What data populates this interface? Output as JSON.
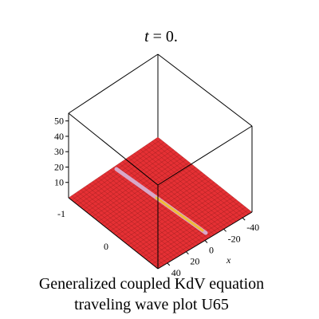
{
  "chart_data": {
    "type": "surface",
    "title": "t = 0.",
    "title_var": "t",
    "title_rest": " = 0.",
    "caption": [
      "Generalized coupled KdV equation",
      "traveling wave plot U65"
    ],
    "xlabel": "x",
    "ylabel": "",
    "zlabel": "",
    "x_ticks": [
      "-40",
      "-20",
      "0",
      "20",
      "40"
    ],
    "y_ticks": [
      "-1",
      "0"
    ],
    "z_ticks": [
      "10",
      "20",
      "30",
      "40",
      "50"
    ],
    "xlim": [
      -50,
      50
    ],
    "ylim": [
      -1,
      1
    ],
    "zlim": [
      0,
      55
    ],
    "grid": "none",
    "surface_color": "#e53034",
    "mesh_color": "#8b1a1a",
    "wave_color": "#d8a8c8",
    "wave_highlight": "#f4c020",
    "description_of_data": "flat surface near z = 0 with a narrow ridge along a line"
  }
}
